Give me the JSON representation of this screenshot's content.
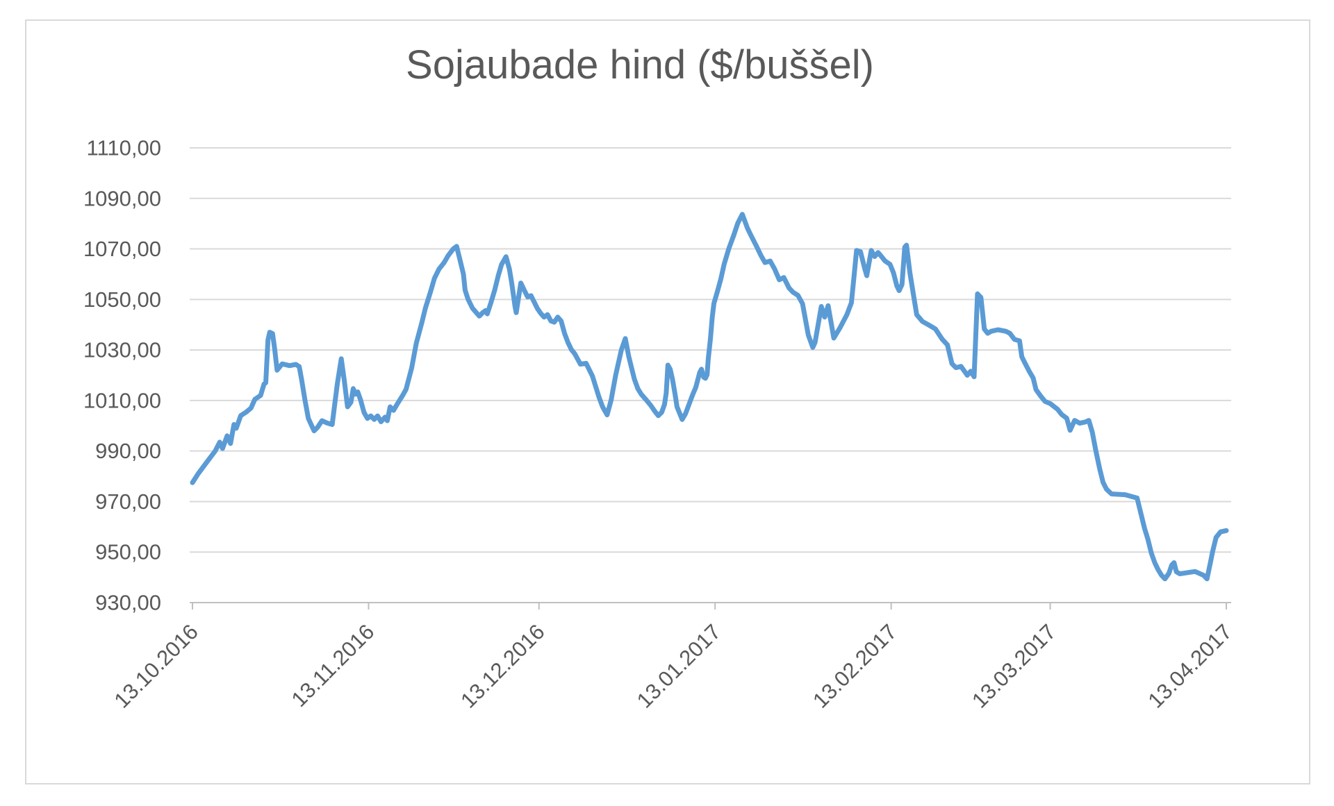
{
  "chart_data": {
    "type": "line",
    "title": "Sojaubade hind ($/buššel)",
    "xlabel": "",
    "ylabel": "",
    "grid": true,
    "legend": false,
    "colors": {
      "line": "#5B9BD5",
      "gridline": "#D9D9D9",
      "axis": "#BFBFBF",
      "text": "#595959"
    },
    "y_axis": {
      "min": 930,
      "max": 1110,
      "step": 20,
      "tick_labels": [
        "1110,00",
        "1090,00",
        "1070,00",
        "1050,00",
        "1030,00",
        "1010,00",
        "990,00",
        "970,00",
        "950,00",
        "930,00"
      ]
    },
    "x_axis": {
      "tick_labels": [
        "13.10.2016",
        "13.11.2016",
        "13.12.2016",
        "13.01.2017",
        "13.02.2017",
        "13.03.2017",
        "13.04.2017"
      ],
      "tick_days": [
        0,
        31,
        61,
        92,
        123,
        151,
        182
      ],
      "total_days": 182
    },
    "series": [
      {
        "name": "Sojaubade hind",
        "points": [
          [
            0,
            977.5
          ],
          [
            1,
            981
          ],
          [
            2.5,
            985.5
          ],
          [
            4,
            990
          ],
          [
            4.8,
            993.5
          ],
          [
            5.3,
            991
          ],
          [
            6.1,
            996
          ],
          [
            6.7,
            993
          ],
          [
            7.3,
            1000.5
          ],
          [
            7.7,
            999
          ],
          [
            8.5,
            1004
          ],
          [
            9.5,
            1005.5
          ],
          [
            10.3,
            1007
          ],
          [
            11,
            1010.5
          ],
          [
            12,
            1012
          ],
          [
            12.6,
            1016.5
          ],
          [
            12.9,
            1017
          ],
          [
            13.3,
            1034
          ],
          [
            13.6,
            1037
          ],
          [
            14.1,
            1036.5
          ],
          [
            14.5,
            1030
          ],
          [
            14.9,
            1022
          ],
          [
            15.8,
            1024.5
          ],
          [
            17.1,
            1023.8
          ],
          [
            18.2,
            1024.3
          ],
          [
            18.8,
            1023.4
          ],
          [
            19.2,
            1018.4
          ],
          [
            19.8,
            1010.2
          ],
          [
            20.4,
            1002.9
          ],
          [
            21.4,
            998
          ],
          [
            22,
            999.3
          ],
          [
            22.8,
            1002
          ],
          [
            23.7,
            1001.1
          ],
          [
            24.6,
            1000.5
          ],
          [
            25.5,
            1016.6
          ],
          [
            26.2,
            1026.5
          ],
          [
            26.7,
            1018.4
          ],
          [
            27.3,
            1007.5
          ],
          [
            27.9,
            1009.3
          ],
          [
            28.3,
            1014.7
          ],
          [
            28.7,
            1012.5
          ],
          [
            29.1,
            1013.4
          ],
          [
            29.6,
            1010.2
          ],
          [
            30.2,
            1005.3
          ],
          [
            30.8,
            1002.9
          ],
          [
            31.4,
            1003.9
          ],
          [
            32,
            1002.5
          ],
          [
            32.6,
            1003.9
          ],
          [
            33.2,
            1001.6
          ],
          [
            33.9,
            1003.4
          ],
          [
            34.3,
            1002
          ],
          [
            34.8,
            1007.5
          ],
          [
            35.4,
            1006.1
          ],
          [
            36,
            1008.4
          ],
          [
            37,
            1012
          ],
          [
            37.6,
            1014.4
          ],
          [
            38.6,
            1023
          ],
          [
            39.4,
            1032.6
          ],
          [
            40.4,
            1041
          ],
          [
            41,
            1046.5
          ],
          [
            41.9,
            1053
          ],
          [
            42.6,
            1058.4
          ],
          [
            43.4,
            1062
          ],
          [
            44.3,
            1064.6
          ],
          [
            45,
            1067.3
          ],
          [
            45.9,
            1070
          ],
          [
            46.5,
            1071
          ],
          [
            47.1,
            1065.6
          ],
          [
            47.7,
            1060
          ],
          [
            48,
            1053.7
          ],
          [
            48.5,
            1050.2
          ],
          [
            49.3,
            1046.5
          ],
          [
            50.5,
            1043.4
          ],
          [
            51.1,
            1044.8
          ],
          [
            51.6,
            1045.6
          ],
          [
            51.9,
            1044.3
          ],
          [
            52.5,
            1048.4
          ],
          [
            53.2,
            1053.7
          ],
          [
            53.8,
            1059.2
          ],
          [
            54.4,
            1063.8
          ],
          [
            55.2,
            1066.9
          ],
          [
            55.8,
            1062
          ],
          [
            56.2,
            1056.5
          ],
          [
            56.8,
            1047
          ],
          [
            57,
            1044.8
          ],
          [
            57.8,
            1056.5
          ],
          [
            58.4,
            1053.7
          ],
          [
            59,
            1051
          ],
          [
            59.6,
            1051.5
          ],
          [
            60.7,
            1046.5
          ],
          [
            61.3,
            1044.5
          ],
          [
            61.9,
            1043
          ],
          [
            62.5,
            1044
          ],
          [
            63.1,
            1041.5
          ],
          [
            63.7,
            1041
          ],
          [
            64.3,
            1043
          ],
          [
            64.9,
            1041.5
          ],
          [
            65.5,
            1036.6
          ],
          [
            66.1,
            1033
          ],
          [
            66.7,
            1030.2
          ],
          [
            67.3,
            1028.5
          ],
          [
            68.3,
            1024.4
          ],
          [
            69.3,
            1024.7
          ],
          [
            70.4,
            1019.7
          ],
          [
            71.6,
            1011.1
          ],
          [
            72.2,
            1007.5
          ],
          [
            73,
            1004.3
          ],
          [
            73.7,
            1010.2
          ],
          [
            74.5,
            1020
          ],
          [
            75.5,
            1030
          ],
          [
            76.2,
            1034.5
          ],
          [
            76.8,
            1027.5
          ],
          [
            77.4,
            1022
          ],
          [
            77.8,
            1018.4
          ],
          [
            78.4,
            1014.7
          ],
          [
            79,
            1012.5
          ],
          [
            79.9,
            1010.2
          ],
          [
            80.7,
            1008
          ],
          [
            81.4,
            1005.7
          ],
          [
            82,
            1004
          ],
          [
            82.6,
            1005.3
          ],
          [
            83.1,
            1008.4
          ],
          [
            83.4,
            1013
          ],
          [
            83.7,
            1024
          ],
          [
            84.1,
            1022.4
          ],
          [
            84.5,
            1018.4
          ],
          [
            85,
            1012
          ],
          [
            85.3,
            1007.5
          ],
          [
            86.2,
            1002.5
          ],
          [
            86.8,
            1004.8
          ],
          [
            87.4,
            1008.4
          ],
          [
            88,
            1012
          ],
          [
            88.6,
            1015.2
          ],
          [
            89.3,
            1021.1
          ],
          [
            89.6,
            1022.4
          ],
          [
            90,
            1019.2
          ],
          [
            90.3,
            1018.8
          ],
          [
            90.6,
            1020.2
          ],
          [
            90.8,
            1026.5
          ],
          [
            91.2,
            1034.7
          ],
          [
            91.5,
            1042.9
          ],
          [
            91.8,
            1048.4
          ],
          [
            92.4,
            1053
          ],
          [
            93,
            1058
          ],
          [
            93.6,
            1064
          ],
          [
            94.4,
            1070
          ],
          [
            95.3,
            1075.5
          ],
          [
            96,
            1080.2
          ],
          [
            96.8,
            1083.7
          ],
          [
            97.7,
            1078.2
          ],
          [
            98.4,
            1075
          ],
          [
            99.3,
            1071
          ],
          [
            100.1,
            1067.3
          ],
          [
            100.8,
            1064.6
          ],
          [
            101.7,
            1065.2
          ],
          [
            102.5,
            1062
          ],
          [
            103.3,
            1057.8
          ],
          [
            104.1,
            1058.7
          ],
          [
            105,
            1054.6
          ],
          [
            105.7,
            1052.9
          ],
          [
            106.6,
            1051.6
          ],
          [
            107.4,
            1048.3
          ],
          [
            108.4,
            1036
          ],
          [
            109.2,
            1031
          ],
          [
            109.6,
            1033
          ],
          [
            110.7,
            1047.2
          ],
          [
            111.3,
            1043
          ],
          [
            111.9,
            1047.5
          ],
          [
            112.9,
            1034.7
          ],
          [
            114,
            1038.8
          ],
          [
            115.2,
            1044
          ],
          [
            116,
            1048.7
          ],
          [
            116.5,
            1060
          ],
          [
            116.9,
            1069.4
          ],
          [
            117.6,
            1068.9
          ],
          [
            118.3,
            1062.6
          ],
          [
            118.7,
            1059.4
          ],
          [
            119.5,
            1069.4
          ],
          [
            120.1,
            1067
          ],
          [
            120.7,
            1068.6
          ],
          [
            121.3,
            1067
          ],
          [
            121.9,
            1065.3
          ],
          [
            122.8,
            1063.9
          ],
          [
            123.4,
            1060.6
          ],
          [
            124,
            1055.4
          ],
          [
            124.4,
            1053.5
          ],
          [
            124.9,
            1055.9
          ],
          [
            125.4,
            1070.7
          ],
          [
            125.7,
            1071.5
          ],
          [
            126.3,
            1060.6
          ],
          [
            126.9,
            1052.2
          ],
          [
            127.5,
            1044
          ],
          [
            128.5,
            1041.3
          ],
          [
            129.6,
            1039.9
          ],
          [
            130.8,
            1038.3
          ],
          [
            132,
            1034.2
          ],
          [
            132.9,
            1032
          ],
          [
            133.7,
            1024.6
          ],
          [
            134.4,
            1023
          ],
          [
            135.3,
            1023.5
          ],
          [
            136.4,
            1020
          ],
          [
            137,
            1021.6
          ],
          [
            137.6,
            1019.4
          ],
          [
            138.2,
            1052.2
          ],
          [
            138.8,
            1050.8
          ],
          [
            139.4,
            1038.3
          ],
          [
            140,
            1036.6
          ],
          [
            140.6,
            1037.4
          ],
          [
            141.8,
            1038
          ],
          [
            143.2,
            1037.4
          ],
          [
            143.9,
            1036.6
          ],
          [
            144.7,
            1034.2
          ],
          [
            145.6,
            1033.6
          ],
          [
            146,
            1027.3
          ],
          [
            146.6,
            1024.6
          ],
          [
            147.3,
            1021.6
          ],
          [
            148,
            1018.9
          ],
          [
            148.5,
            1014.3
          ],
          [
            149.4,
            1011.5
          ],
          [
            150.1,
            1009.6
          ],
          [
            151,
            1008.8
          ],
          [
            152.3,
            1006.5
          ],
          [
            153,
            1004.5
          ],
          [
            153.9,
            1003
          ],
          [
            154.5,
            998.2
          ],
          [
            155.3,
            1002.1
          ],
          [
            156.2,
            1001
          ],
          [
            157.2,
            1001.5
          ],
          [
            157.8,
            1002.1
          ],
          [
            158.4,
            997.5
          ],
          [
            159,
            990.4
          ],
          [
            159.7,
            983
          ],
          [
            160.3,
            977.6
          ],
          [
            160.9,
            974.9
          ],
          [
            161.8,
            973
          ],
          [
            164.2,
            972.7
          ],
          [
            166.3,
            971.4
          ],
          [
            167,
            964.9
          ],
          [
            167.6,
            959.4
          ],
          [
            168.2,
            955
          ],
          [
            168.8,
            949.6
          ],
          [
            169.4,
            945.8
          ],
          [
            170,
            943
          ],
          [
            170.6,
            940.8
          ],
          [
            171.2,
            939.4
          ],
          [
            171.9,
            941.6
          ],
          [
            172.4,
            944.9
          ],
          [
            172.8,
            945.8
          ],
          [
            173.2,
            942.2
          ],
          [
            173.8,
            941.4
          ],
          [
            174.4,
            941.6
          ],
          [
            176.5,
            942.3
          ],
          [
            178,
            940.8
          ],
          [
            178.6,
            939.4
          ],
          [
            179.2,
            945.8
          ],
          [
            179.6,
            950.3
          ],
          [
            180.2,
            955.8
          ],
          [
            181,
            958
          ],
          [
            182,
            958.5
          ]
        ]
      }
    ]
  }
}
